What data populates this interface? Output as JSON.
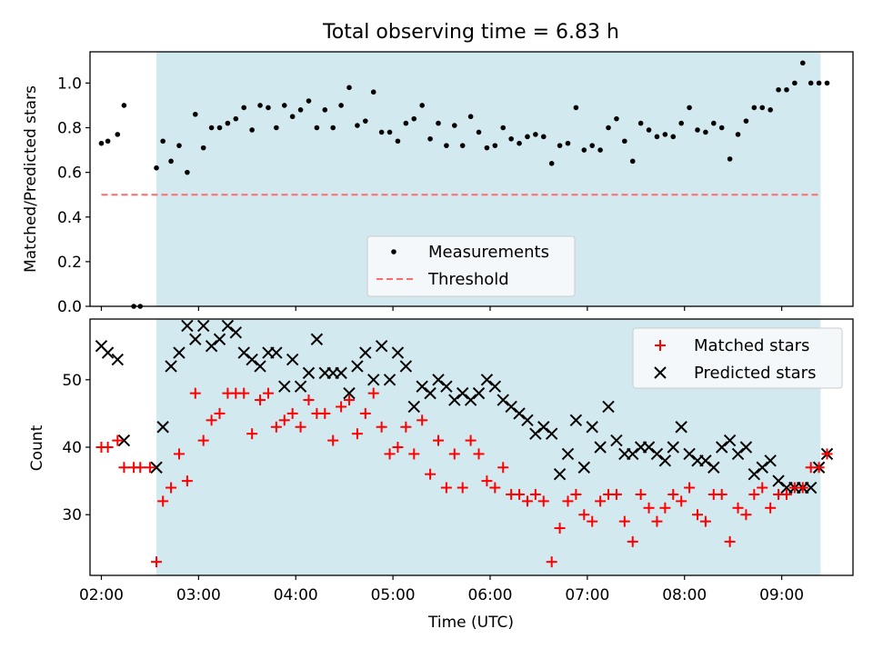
{
  "figure_title": "Total observing time = 6.83 h",
  "colors": {
    "shade": "#d3e9f0",
    "measurement": "#000000",
    "threshold": "#ff6b6b",
    "matched": "#ff0000",
    "predicted": "#000000"
  },
  "chart_data": [
    {
      "type": "scatter",
      "title": "Total observing time = 6.83 h",
      "ylabel": "Matched/Predicted stars",
      "xlabel": "",
      "ylim": [
        0,
        1.14
      ],
      "xlim": [
        "01:53",
        "09:44"
      ],
      "yticks": [
        "0.0",
        "0.2",
        "0.4",
        "0.6",
        "0.8",
        "1.0"
      ],
      "shaded_span": [
        "02:34",
        "09:24"
      ],
      "grid": false,
      "legend_position": "lower-center",
      "series": [
        {
          "name": "Measurements",
          "marker": "dot",
          "x": [
            "02:00",
            "02:04",
            "02:10",
            "02:14",
            "02:20",
            "02:24",
            "02:34",
            "02:38",
            "02:43",
            "02:48",
            "02:53",
            "02:58",
            "03:03",
            "03:08",
            "03:13",
            "03:18",
            "03:23",
            "03:28",
            "03:33",
            "03:38",
            "03:43",
            "03:48",
            "03:53",
            "03:58",
            "04:03",
            "04:08",
            "04:13",
            "04:18",
            "04:23",
            "04:28",
            "04:33",
            "04:38",
            "04:43",
            "04:48",
            "04:53",
            "04:58",
            "05:03",
            "05:08",
            "05:13",
            "05:18",
            "05:23",
            "05:28",
            "05:33",
            "05:38",
            "05:43",
            "05:48",
            "05:53",
            "05:58",
            "06:03",
            "06:08",
            "06:13",
            "06:18",
            "06:23",
            "06:28",
            "06:33",
            "06:38",
            "06:43",
            "06:48",
            "06:53",
            "06:58",
            "07:03",
            "07:08",
            "07:13",
            "07:18",
            "07:23",
            "07:28",
            "07:33",
            "07:38",
            "07:43",
            "07:48",
            "07:53",
            "07:58",
            "08:03",
            "08:08",
            "08:13",
            "08:18",
            "08:23",
            "08:28",
            "08:33",
            "08:38",
            "08:43",
            "08:48",
            "08:53",
            "08:58",
            "09:03",
            "09:08",
            "09:13",
            "09:18",
            "09:23",
            "09:28"
          ],
          "y": [
            0.73,
            0.74,
            0.77,
            0.9,
            0.0,
            0.0,
            0.62,
            0.74,
            0.65,
            0.72,
            0.6,
            0.86,
            0.71,
            0.8,
            0.8,
            0.82,
            0.84,
            0.89,
            0.79,
            0.9,
            0.89,
            0.8,
            0.9,
            0.85,
            0.88,
            0.92,
            0.8,
            0.88,
            0.8,
            0.9,
            0.98,
            0.81,
            0.83,
            0.96,
            0.78,
            0.78,
            0.74,
            0.82,
            0.84,
            0.9,
            0.75,
            0.82,
            0.72,
            0.81,
            0.72,
            0.85,
            0.78,
            0.71,
            0.72,
            0.8,
            0.75,
            0.73,
            0.76,
            0.77,
            0.76,
            0.64,
            0.72,
            0.73,
            0.89,
            0.7,
            0.72,
            0.7,
            0.8,
            0.84,
            0.74,
            0.65,
            0.82,
            0.79,
            0.76,
            0.77,
            0.76,
            0.82,
            0.89,
            0.79,
            0.78,
            0.82,
            0.8,
            0.66,
            0.77,
            0.83,
            0.89,
            0.89,
            0.88,
            0.97,
            0.97,
            1.0,
            1.09,
            1.0,
            1.0,
            1.0
          ]
        },
        {
          "name": "Threshold",
          "style": "dashed",
          "x": [
            "02:00",
            "09:24"
          ],
          "y": [
            0.5,
            0.5
          ]
        }
      ]
    },
    {
      "type": "scatter",
      "title": "",
      "xlabel": "Time (UTC)",
      "ylabel": "Count",
      "ylim": [
        21,
        59
      ],
      "xlim": [
        "01:53",
        "09:44"
      ],
      "yticks": [
        "30",
        "40",
        "50"
      ],
      "xticks": [
        "02:00",
        "03:00",
        "04:00",
        "05:00",
        "06:00",
        "07:00",
        "08:00",
        "09:00"
      ],
      "shaded_span": [
        "02:34",
        "09:24"
      ],
      "grid": false,
      "legend_position": "upper-right",
      "series": [
        {
          "name": "Matched stars",
          "marker": "plus",
          "x": [
            "02:00",
            "02:04",
            "02:10",
            "02:14",
            "02:20",
            "02:24",
            "02:30",
            "02:34",
            "02:38",
            "02:43",
            "02:48",
            "02:53",
            "02:58",
            "03:03",
            "03:08",
            "03:13",
            "03:18",
            "03:23",
            "03:28",
            "03:33",
            "03:38",
            "03:43",
            "03:48",
            "03:53",
            "03:58",
            "04:03",
            "04:08",
            "04:13",
            "04:18",
            "04:23",
            "04:28",
            "04:33",
            "04:38",
            "04:43",
            "04:48",
            "04:53",
            "04:58",
            "05:03",
            "05:08",
            "05:13",
            "05:18",
            "05:23",
            "05:28",
            "05:33",
            "05:38",
            "05:43",
            "05:48",
            "05:53",
            "05:58",
            "06:03",
            "06:08",
            "06:13",
            "06:18",
            "06:23",
            "06:28",
            "06:33",
            "06:38",
            "06:43",
            "06:48",
            "06:53",
            "06:58",
            "07:03",
            "07:08",
            "07:13",
            "07:18",
            "07:23",
            "07:28",
            "07:33",
            "07:38",
            "07:43",
            "07:48",
            "07:53",
            "07:58",
            "08:03",
            "08:08",
            "08:13",
            "08:18",
            "08:23",
            "08:28",
            "08:33",
            "08:38",
            "08:43",
            "08:48",
            "08:53",
            "08:58",
            "09:03",
            "09:08",
            "09:13",
            "09:18",
            "09:23",
            "09:28"
          ],
          "y": [
            40,
            40,
            41,
            37,
            37,
            37,
            37,
            23,
            32,
            34,
            39,
            35,
            48,
            41,
            44,
            45,
            48,
            48,
            48,
            42,
            47,
            48,
            43,
            44,
            45,
            43,
            47,
            45,
            45,
            41,
            46,
            47,
            42,
            45,
            48,
            43,
            39,
            40,
            43,
            39,
            44,
            36,
            41,
            34,
            39,
            34,
            41,
            39,
            35,
            34,
            37,
            33,
            33,
            32,
            33,
            32,
            23,
            28,
            32,
            33,
            30,
            29,
            32,
            33,
            33,
            29,
            26,
            33,
            31,
            29,
            31,
            33,
            32,
            34,
            30,
            29,
            33,
            33,
            26,
            31,
            30,
            33,
            34,
            31,
            33,
            33,
            34,
            34,
            37,
            37,
            39
          ]
        },
        {
          "name": "Predicted stars",
          "marker": "x",
          "x": [
            "02:00",
            "02:04",
            "02:10",
            "02:14",
            "02:34",
            "02:38",
            "02:43",
            "02:48",
            "02:53",
            "02:58",
            "03:03",
            "03:08",
            "03:13",
            "03:18",
            "03:23",
            "03:28",
            "03:33",
            "03:38",
            "03:43",
            "03:48",
            "03:53",
            "03:58",
            "04:03",
            "04:08",
            "04:13",
            "04:18",
            "04:23",
            "04:28",
            "04:33",
            "04:38",
            "04:43",
            "04:48",
            "04:53",
            "04:58",
            "05:03",
            "05:08",
            "05:13",
            "05:18",
            "05:23",
            "05:28",
            "05:33",
            "05:38",
            "05:43",
            "05:48",
            "05:53",
            "05:58",
            "06:03",
            "06:08",
            "06:13",
            "06:18",
            "06:23",
            "06:28",
            "06:33",
            "06:38",
            "06:43",
            "06:48",
            "06:53",
            "06:58",
            "07:03",
            "07:08",
            "07:13",
            "07:18",
            "07:23",
            "07:28",
            "07:33",
            "07:38",
            "07:43",
            "07:48",
            "07:53",
            "07:58",
            "08:03",
            "08:08",
            "08:13",
            "08:18",
            "08:23",
            "08:28",
            "08:33",
            "08:38",
            "08:43",
            "08:48",
            "08:53",
            "08:58",
            "09:03",
            "09:08",
            "09:13",
            "09:18",
            "09:23",
            "09:28"
          ],
          "y": [
            55,
            54,
            53,
            41,
            37,
            43,
            52,
            54,
            58,
            56,
            58,
            55,
            56,
            58,
            57,
            54,
            53,
            52,
            54,
            54,
            49,
            53,
            49,
            51,
            56,
            51,
            51,
            51,
            48,
            52,
            54,
            50,
            55,
            50,
            54,
            52,
            46,
            49,
            48,
            50,
            49,
            47,
            48,
            47,
            48,
            50,
            49,
            47,
            46,
            45,
            44,
            42,
            43,
            42,
            36,
            39,
            44,
            37,
            43,
            40,
            46,
            41,
            39,
            39,
            40,
            40,
            39,
            38,
            40,
            43,
            39,
            38,
            38,
            37,
            40,
            41,
            39,
            40,
            36,
            37,
            38,
            35,
            34,
            34,
            34,
            34,
            37,
            39
          ]
        }
      ]
    }
  ]
}
